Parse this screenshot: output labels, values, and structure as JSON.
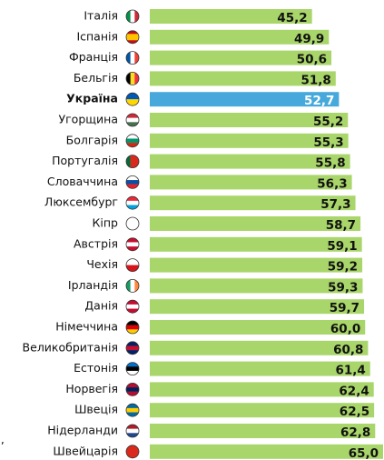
{
  "chart_data": {
    "type": "bar",
    "orientation": "horizontal",
    "categories": [
      "Італія",
      "Іспанія",
      "Франція",
      "Бельгія",
      "Україна",
      "Угорщина",
      "Болгарія",
      "Португалія",
      "Словаччина",
      "Люксембург",
      "Кіпр",
      "Австрія",
      "Чехія",
      "Ірландія",
      "Данія",
      "Німеччина",
      "Великобританія",
      "Естонія",
      "Норвегія",
      "Швеція",
      "Нідерланди",
      "Швейцарія"
    ],
    "values": [
      45.2,
      49.9,
      50.6,
      51.8,
      52.7,
      55.2,
      55.3,
      55.8,
      56.3,
      57.3,
      58.7,
      59.1,
      59.2,
      59.3,
      59.7,
      60.0,
      60.8,
      61.4,
      62.4,
      62.5,
      62.8,
      65.0
    ],
    "value_labels": [
      "45,2",
      "49,9",
      "50,6",
      "51,8",
      "52,7",
      "55,2",
      "55,3",
      "55,8",
      "56,3",
      "57,3",
      "58,7",
      "59,1",
      "59,2",
      "59,3",
      "59,7",
      "60,0",
      "60,8",
      "61,4",
      "62,4",
      "62,5",
      "62,8",
      "65,0"
    ],
    "colors": [
      "#a9d66a",
      "#a9d66a",
      "#a9d66a",
      "#a9d66a",
      "#47a9db",
      "#a9d66a",
      "#a9d66a",
      "#a9d66a",
      "#a9d66a",
      "#a9d66a",
      "#a9d66a",
      "#a9d66a",
      "#a9d66a",
      "#a9d66a",
      "#a9d66a",
      "#a9d66a",
      "#a9d66a",
      "#a9d66a",
      "#a9d66a",
      "#a9d66a",
      "#a9d66a",
      "#a9d66a"
    ],
    "xlim": [
      0,
      65
    ],
    "annotation": "),"
  }
}
